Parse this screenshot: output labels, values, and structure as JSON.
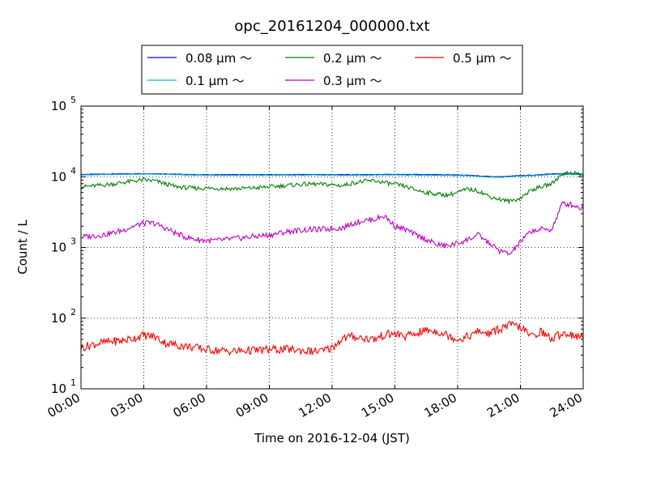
{
  "chart_data": {
    "type": "line",
    "title": "opc_20161204_000000.txt",
    "xlabel": "Time on 2016-12-04 (JST)",
    "ylabel": "Count / L",
    "xlim": [
      "00:00",
      "24:00"
    ],
    "ylim": [
      10,
      100000
    ],
    "yscale": "log",
    "grid": true,
    "legend_position": "top-center",
    "x_ticks": [
      "00:00",
      "03:00",
      "06:00",
      "09:00",
      "12:00",
      "15:00",
      "18:00",
      "21:00",
      "24:00"
    ],
    "y_ticks": [
      {
        "base": "10",
        "exp": "1"
      },
      {
        "base": "10",
        "exp": "2"
      },
      {
        "base": "10",
        "exp": "3"
      },
      {
        "base": "10",
        "exp": "4"
      },
      {
        "base": "10",
        "exp": "5"
      }
    ],
    "x_hours": [
      0,
      0.5,
      1,
      1.5,
      2,
      2.5,
      3,
      3.5,
      4,
      4.5,
      5,
      5.5,
      6,
      6.5,
      7,
      7.5,
      8,
      8.5,
      9,
      9.5,
      10,
      10.5,
      11,
      11.5,
      12,
      12.5,
      13,
      13.5,
      14,
      14.5,
      15,
      15.5,
      16,
      16.5,
      17,
      17.5,
      18,
      18.5,
      19,
      19.5,
      20,
      20.5,
      21,
      21.5,
      22,
      22.5,
      23,
      23.5,
      24
    ],
    "series": [
      {
        "name": "0.08 μm ～",
        "color": "#0000ff",
        "values": [
          10800,
          10850,
          10900,
          10950,
          11000,
          11050,
          11100,
          11100,
          11000,
          10900,
          10800,
          10700,
          10700,
          10700,
          10700,
          10700,
          10700,
          10700,
          10700,
          10700,
          10700,
          10750,
          10750,
          10750,
          10700,
          10700,
          10700,
          10750,
          10750,
          10800,
          10800,
          10750,
          10750,
          10700,
          10700,
          10650,
          10600,
          10500,
          10300,
          10100,
          10000,
          10200,
          10400,
          10500,
          10700,
          11000,
          11100,
          11000,
          10900
        ]
      },
      {
        "name": "0.1 μm ～",
        "color": "#00bfbf",
        "values": [
          10600,
          10650,
          10700,
          10750,
          10800,
          10850,
          10900,
          10900,
          10800,
          10700,
          10600,
          10500,
          10500,
          10500,
          10500,
          10500,
          10500,
          10500,
          10500,
          10500,
          10500,
          10550,
          10550,
          10550,
          10500,
          10500,
          10500,
          10550,
          10550,
          10600,
          10600,
          10550,
          10550,
          10500,
          10500,
          10450,
          10400,
          10300,
          10100,
          9900,
          9800,
          10000,
          10200,
          10300,
          10500,
          10800,
          10900,
          10800,
          10700
        ]
      },
      {
        "name": "0.2 μm ～",
        "color": "#008000",
        "values": [
          7200,
          7400,
          7600,
          7900,
          8300,
          8700,
          9000,
          8800,
          8000,
          7300,
          7000,
          6900,
          6900,
          6900,
          6800,
          6800,
          6900,
          7000,
          7200,
          7400,
          7600,
          7800,
          7900,
          7800,
          7700,
          7500,
          8200,
          8600,
          8800,
          8300,
          7800,
          7300,
          6500,
          6000,
          5700,
          5500,
          6000,
          6700,
          6300,
          5300,
          4800,
          4500,
          5000,
          6500,
          7200,
          8000,
          11000,
          11500,
          10500
        ]
      },
      {
        "name": "0.3 μm ～",
        "color": "#bf00bf",
        "values": [
          1400,
          1450,
          1500,
          1600,
          1750,
          2000,
          2200,
          2200,
          1900,
          1600,
          1400,
          1300,
          1250,
          1250,
          1300,
          1350,
          1400,
          1450,
          1500,
          1600,
          1700,
          1750,
          1800,
          1800,
          1850,
          1900,
          2200,
          2400,
          2500,
          2800,
          2000,
          1800,
          1500,
          1300,
          1100,
          1050,
          1150,
          1300,
          1500,
          1150,
          900,
          800,
          1200,
          1700,
          1800,
          1800,
          4200,
          4000,
          3500
        ]
      },
      {
        "name": "0.5 μm ～",
        "color": "#ff0000",
        "values": [
          38,
          42,
          45,
          47,
          48,
          52,
          57,
          55,
          45,
          42,
          40,
          38,
          36,
          35,
          34,
          34,
          35,
          35,
          36,
          36,
          36,
          35,
          34,
          34,
          38,
          52,
          55,
          52,
          50,
          58,
          60,
          55,
          60,
          68,
          65,
          58,
          50,
          55,
          65,
          60,
          70,
          80,
          75,
          55,
          65,
          50,
          62,
          58,
          52
        ]
      }
    ]
  }
}
